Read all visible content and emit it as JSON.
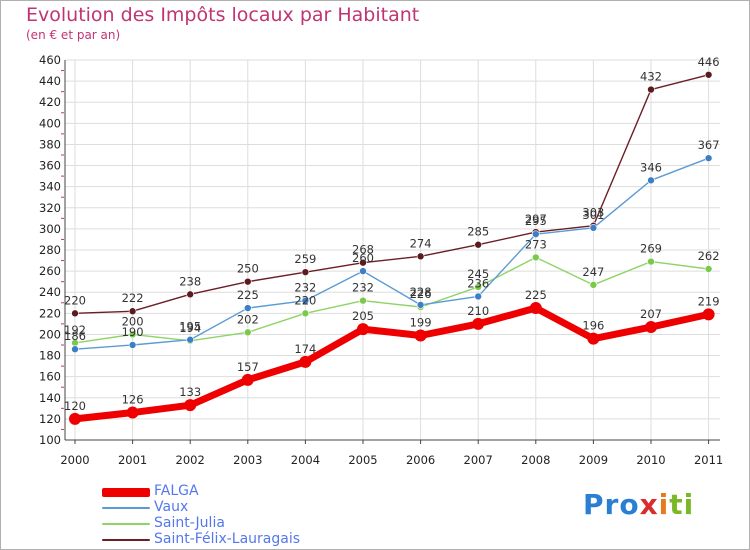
{
  "chart_data": {
    "type": "line",
    "title": "Evolution des Impôts locaux par Habitant",
    "subtitle": "(en € et par an)",
    "xlabel": "",
    "ylabel": "",
    "categories": [
      "2000",
      "2001",
      "2002",
      "2003",
      "2004",
      "2005",
      "2006",
      "2007",
      "2008",
      "2009",
      "2010",
      "2011"
    ],
    "ylim": [
      100,
      460
    ],
    "yticks": [
      100,
      120,
      140,
      160,
      180,
      200,
      220,
      240,
      260,
      280,
      300,
      320,
      340,
      360,
      380,
      400,
      420,
      440,
      460
    ],
    "grid": true,
    "legend_position": "bottom-left",
    "series": [
      {
        "name": "FALGA",
        "color": "#ee0000",
        "values": [
          120,
          126,
          133,
          157,
          174,
          205,
          199,
          210,
          225,
          196,
          207,
          219
        ]
      },
      {
        "name": "Vaux",
        "color": "#5b9bd5",
        "values": [
          186,
          190,
          195,
          225,
          232,
          260,
          228,
          236,
          295,
          301,
          346,
          367
        ]
      },
      {
        "name": "Saint-Julia",
        "color": "#8ed466",
        "values": [
          192,
          200,
          194,
          202,
          220,
          232,
          226,
          245,
          273,
          247,
          269,
          262
        ]
      },
      {
        "name": "Saint-Félix-Lauragais",
        "color": "#6b1f24",
        "values": [
          220,
          222,
          238,
          250,
          259,
          268,
          274,
          285,
          297,
          303,
          432,
          446
        ]
      }
    ],
    "data_labels": [
      {
        "series": 0,
        "index": 0,
        "text": "120"
      },
      {
        "series": 0,
        "index": 1,
        "text": "126"
      },
      {
        "series": 0,
        "index": 2,
        "text": "133"
      },
      {
        "series": 0,
        "index": 3,
        "text": "157"
      },
      {
        "series": 0,
        "index": 4,
        "text": "174"
      },
      {
        "series": 0,
        "index": 5,
        "text": "205"
      },
      {
        "series": 0,
        "index": 6,
        "text": "199"
      },
      {
        "series": 0,
        "index": 7,
        "text": "210"
      },
      {
        "series": 0,
        "index": 8,
        "text": "225"
      },
      {
        "series": 0,
        "index": 9,
        "text": "196"
      },
      {
        "series": 0,
        "index": 10,
        "text": "207"
      },
      {
        "series": 0,
        "index": 11,
        "text": "219"
      },
      {
        "series": 1,
        "index": 0,
        "text": "186"
      },
      {
        "series": 1,
        "index": 1,
        "text": "190"
      },
      {
        "series": 1,
        "index": 2,
        "text": "195"
      },
      {
        "series": 1,
        "index": 3,
        "text": "225"
      },
      {
        "series": 1,
        "index": 4,
        "text": "232"
      },
      {
        "series": 1,
        "index": 5,
        "text": "260"
      },
      {
        "series": 1,
        "index": 6,
        "text": "228"
      },
      {
        "series": 1,
        "index": 7,
        "text": "236"
      },
      {
        "series": 1,
        "index": 8,
        "text": "295"
      },
      {
        "series": 1,
        "index": 9,
        "text": "301"
      },
      {
        "series": 1,
        "index": 10,
        "text": "346"
      },
      {
        "series": 1,
        "index": 11,
        "text": "367"
      },
      {
        "series": 2,
        "index": 0,
        "text": "192"
      },
      {
        "series": 2,
        "index": 1,
        "text": "200"
      },
      {
        "series": 2,
        "index": 2,
        "text": "194"
      },
      {
        "series": 2,
        "index": 3,
        "text": "202"
      },
      {
        "series": 2,
        "index": 4,
        "text": "220"
      },
      {
        "series": 2,
        "index": 5,
        "text": "232"
      },
      {
        "series": 2,
        "index": 6,
        "text": "226"
      },
      {
        "series": 2,
        "index": 7,
        "text": "245"
      },
      {
        "series": 2,
        "index": 8,
        "text": "273"
      },
      {
        "series": 2,
        "index": 9,
        "text": "247"
      },
      {
        "series": 2,
        "index": 10,
        "text": "269"
      },
      {
        "series": 2,
        "index": 11,
        "text": "262"
      },
      {
        "series": 3,
        "index": 0,
        "text": "220"
      },
      {
        "series": 3,
        "index": 1,
        "text": "222"
      },
      {
        "series": 3,
        "index": 2,
        "text": "238"
      },
      {
        "series": 3,
        "index": 3,
        "text": "250"
      },
      {
        "series": 3,
        "index": 4,
        "text": "259"
      },
      {
        "series": 3,
        "index": 5,
        "text": "268"
      },
      {
        "series": 3,
        "index": 6,
        "text": "274"
      },
      {
        "series": 3,
        "index": 7,
        "text": "285"
      },
      {
        "series": 3,
        "index": 8,
        "text": "297"
      },
      {
        "series": 3,
        "index": 9,
        "text": "303"
      },
      {
        "series": 3,
        "index": 10,
        "text": "432"
      },
      {
        "series": 3,
        "index": 11,
        "text": "446"
      }
    ]
  },
  "logo": {
    "p1": "Pro",
    "p2": "x",
    "p3": "i",
    "p4": "ti"
  }
}
